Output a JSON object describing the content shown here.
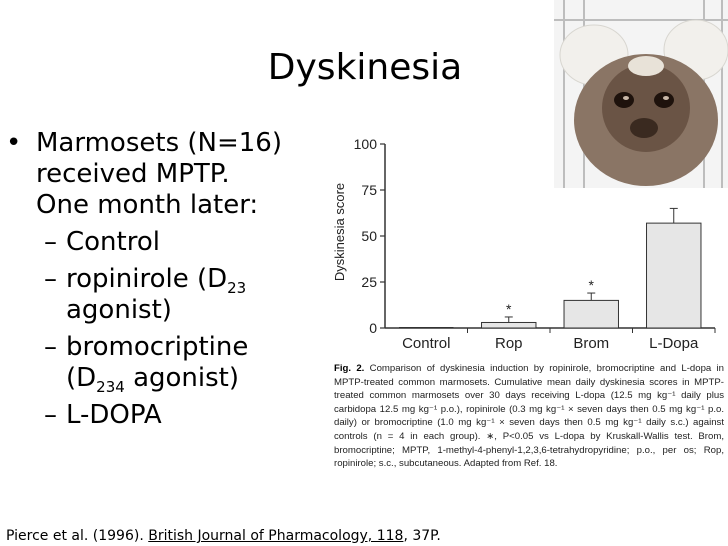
{
  "slide": {
    "title": "Dyskinesia",
    "bullet_main": [
      "Marmosets (N=16)",
      "received MPTP.",
      "One month later:"
    ],
    "sub_bullets": [
      {
        "text": "Control"
      },
      {
        "lines": [
          "ropinirole (D",
          "23",
          "",
          "agonist)"
        ]
      },
      {
        "lines": [
          "bromocriptine",
          "(D",
          "234",
          " agonist)"
        ]
      },
      {
        "text": "L-DOPA"
      }
    ],
    "citation": {
      "authors": "Pierce et al. (1996).",
      "journal": "British Journal of Pharmacology, 118",
      "pages": ", 37P."
    }
  },
  "chart_data": {
    "type": "bar",
    "ylabel": "Dyskinesia score",
    "ylim": [
      0,
      100
    ],
    "yticks": [
      0,
      25,
      50,
      75,
      100
    ],
    "categories": [
      "Control",
      "Rop",
      "Brom",
      "L-Dopa"
    ],
    "values": [
      0,
      3,
      15,
      57
    ],
    "errors": [
      0,
      3,
      4,
      8
    ],
    "significance": [
      "",
      "*",
      "*",
      ""
    ]
  },
  "caption": {
    "label": "Fig. 2.",
    "text": "Comparison of dyskinesia induction by ropinirole, bromocriptine and L-dopa in MPTP-treated common marmosets. Cumulative mean daily dyskinesia scores in MPTP-treated common marmosets over 30 days receiving L-dopa (12.5 mg kg⁻¹ daily plus carbidopa 12.5 mg kg⁻¹ p.o.), ropinirole (0.3 mg kg⁻¹ × seven days then 0.5 mg kg⁻¹ p.o. daily) or bromocriptine (1.0 mg kg⁻¹ × seven days then 0.5 mg kg⁻¹ daily s.c.) against controls (n = 4 in each group). ∗, P<0.05 vs L-dopa by Kruskall-Wallis test. Brom, bromocriptine; MPTP, 1-methyl-4-phenyl-1,2,3,6-tetrahydropyridine; p.o., per os; Rop, ropinirole; s.c., subcutaneous. Adapted from Ref. 18."
  },
  "colors": {
    "bar_fill": "#e6e6e6",
    "axis": "#333333"
  }
}
